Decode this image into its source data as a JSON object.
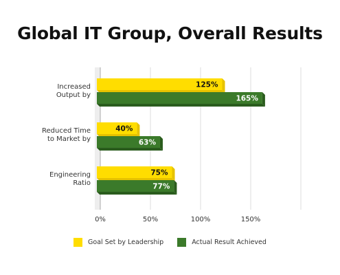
{
  "chart_data": {
    "type": "bar",
    "orientation": "horizontal",
    "title": "Global IT Group, Overall Results",
    "categories": [
      "Increased Output by",
      "Reduced Time to Market by",
      "Engineering Ratio"
    ],
    "series": [
      {
        "name": "Goal Set by Leadership",
        "values": [
          125,
          40,
          75
        ],
        "labels": [
          "125%",
          "40%",
          "75%"
        ],
        "color": "#ffdd00"
      },
      {
        "name": "Actual Result Achieved",
        "values": [
          165,
          63,
          77
        ],
        "labels": [
          "165%",
          "63%",
          "77%"
        ],
        "color": "#3b7a2a"
      }
    ],
    "xlim": [
      0,
      200
    ],
    "xticks": [
      0,
      50,
      100,
      150,
      200
    ],
    "xtick_labels": [
      "0%",
      "50%",
      "100%",
      "150%",
      ""
    ],
    "grid": true,
    "legend": "bottom"
  }
}
